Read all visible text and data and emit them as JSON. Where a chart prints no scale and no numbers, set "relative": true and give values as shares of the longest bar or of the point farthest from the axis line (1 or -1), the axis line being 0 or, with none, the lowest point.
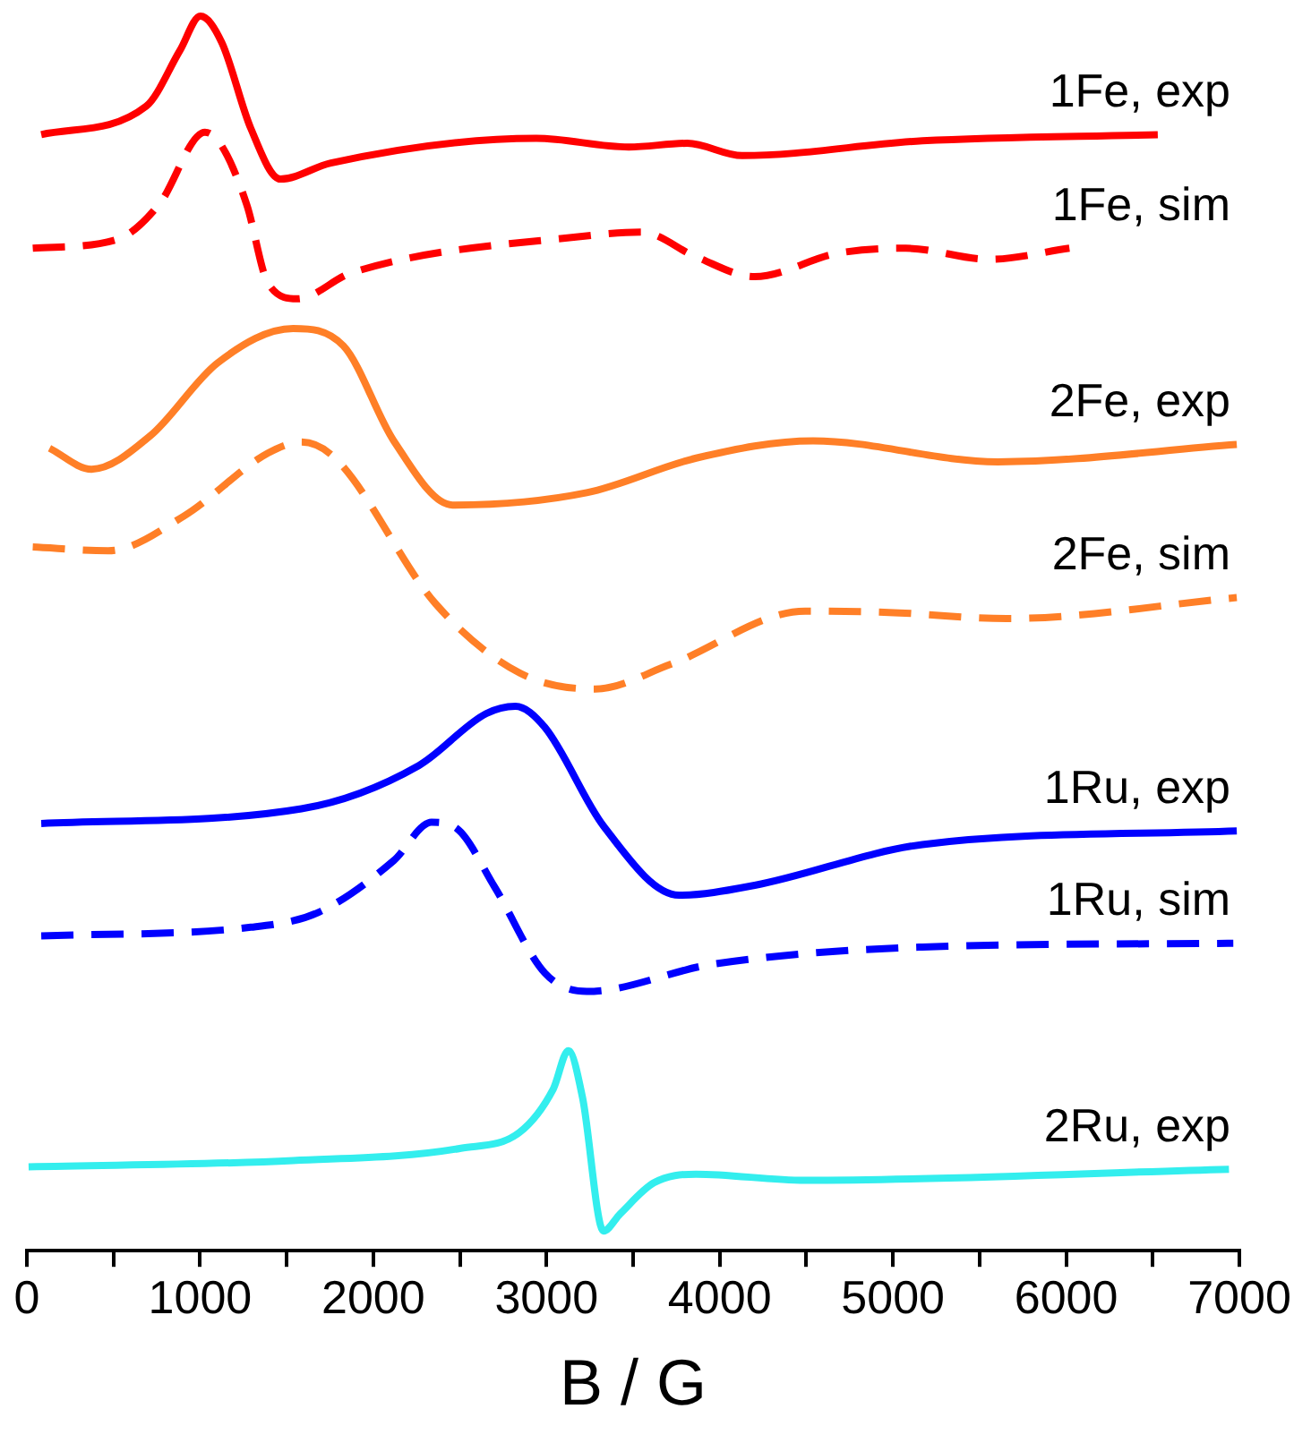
{
  "chart_data": {
    "type": "line",
    "xlabel": "B / G",
    "relative": true,
    "xlim": [
      0,
      7000
    ],
    "xticks": [
      0,
      {
        "value": 500,
        "label": null
      },
      1000,
      {
        "value": 1500,
        "label": null
      },
      2000,
      {
        "value": 2500,
        "label": null
      },
      3000,
      {
        "value": 3500,
        "label": null
      },
      4000,
      {
        "value": 4500,
        "label": null
      },
      5000,
      {
        "value": 5500,
        "label": null
      },
      6000,
      {
        "value": 6500,
        "label": null
      },
      7000
    ],
    "series": [
      {
        "name": "1Fe, exp",
        "color": "#ff0000",
        "line_style": "solid",
        "x": [
          83,
          689,
          883,
          1002,
          1124,
          1293,
          1463,
          1755,
          2941,
          3475,
          3813,
          4130,
          5170,
          6529
        ],
        "values": [
          0.904,
          0.927,
          0.972,
          1.0,
          0.979,
          0.909,
          0.868,
          0.881,
          0.901,
          0.894,
          0.897,
          0.887,
          0.899,
          0.904
        ]
      },
      {
        "name": "1Fe, sim",
        "color": "#ff0000",
        "line_style": "dashed",
        "x": [
          34,
          519,
          761,
          1028,
          1124,
          1270,
          1391,
          1561,
          1873,
          3232,
          3548,
          3864,
          4202,
          4683,
          5074,
          5558,
          6019
        ],
        "values": [
          0.812,
          0.819,
          0.847,
          0.906,
          0.895,
          0.847,
          0.784,
          0.771,
          0.792,
          0.822,
          0.825,
          0.805,
          0.789,
          0.808,
          0.812,
          0.803,
          0.812
        ]
      },
      {
        "name": "2Fe, exp",
        "color": "#ff7f27",
        "line_style": "solid",
        "x": [
          131,
          373,
          712,
          1100,
          1537,
          1827,
          2118,
          2457,
          3232,
          3864,
          4539,
          5606,
          6985
        ],
        "values": [
          0.65,
          0.633,
          0.66,
          0.719,
          0.747,
          0.733,
          0.656,
          0.604,
          0.614,
          0.642,
          0.656,
          0.639,
          0.653
        ]
      },
      {
        "name": "2Fe, sim",
        "color": "#ff7f27",
        "line_style": "dashed",
        "x": [
          34,
          470,
          906,
          1391,
          1585,
          1779,
          2360,
          2845,
          3281,
          3717,
          4493,
          4977,
          5655,
          6985
        ],
        "values": [
          0.57,
          0.567,
          0.595,
          0.646,
          0.655,
          0.642,
          0.524,
          0.468,
          0.455,
          0.475,
          0.518,
          0.517,
          0.512,
          0.529
        ]
      },
      {
        "name": "1Ru, exp",
        "color": "#0000ff",
        "line_style": "solid",
        "x": [
          83,
          1585,
          2263,
          2651,
          2821,
          2990,
          3329,
          3765,
          4202,
          5170,
          6985
        ],
        "values": [
          0.346,
          0.358,
          0.393,
          0.435,
          0.441,
          0.424,
          0.344,
          0.288,
          0.296,
          0.329,
          0.34
        ]
      },
      {
        "name": "1Ru, sim",
        "color": "#0000ff",
        "line_style": "dashed",
        "x": [
          83,
          1293,
          1682,
          2118,
          2336,
          2482,
          2699,
          2990,
          3232,
          3958,
          5170,
          6965
        ],
        "values": [
          0.255,
          0.262,
          0.274,
          0.316,
          0.347,
          0.342,
          0.295,
          0.225,
          0.21,
          0.232,
          0.246,
          0.249
        ]
      },
      {
        "name": "2Ru, exp",
        "color": "#33eeee",
        "line_style": "solid",
        "x": [
          10,
          1537,
          2506,
          2845,
          3039,
          3126,
          3208,
          3329,
          3426,
          3620,
          3863,
          4492,
          6940
        ],
        "values": [
          0.068,
          0.073,
          0.083,
          0.096,
          0.131,
          0.162,
          0.124,
          0.016,
          0.03,
          0.055,
          0.062,
          0.057,
          0.066
        ]
      }
    ]
  }
}
